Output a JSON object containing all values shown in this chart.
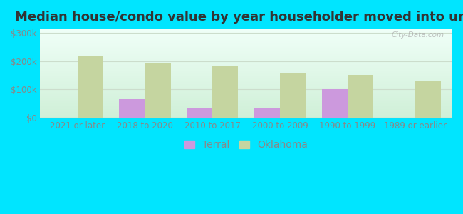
{
  "title": "Median house/condo value by year householder moved into unit",
  "categories": [
    "2021 or later",
    "2018 to 2020",
    "2010 to 2017",
    "2000 to 2009",
    "1990 to 1999",
    "1989 or earlier"
  ],
  "terral_values": [
    null,
    65000,
    35000,
    35000,
    100000,
    null
  ],
  "oklahoma_values": [
    220000,
    195000,
    182000,
    160000,
    152000,
    128000
  ],
  "terral_color": "#cc99dd",
  "oklahoma_color": "#c5d5a0",
  "outer_bg": "#00e5ff",
  "plot_bg_top": "#f0fff8",
  "plot_bg_bottom": "#d0f0d8",
  "ylabel_ticks": [
    "$0",
    "$100k",
    "$200k",
    "$300k"
  ],
  "ytick_values": [
    0,
    100000,
    200000,
    300000
  ],
  "ylim": [
    0,
    315000
  ],
  "watermark": "City-Data.com",
  "bar_width": 0.38,
  "title_fontsize": 13,
  "tick_fontsize": 8.5,
  "legend_fontsize": 10,
  "grid_color": "#ccddcc",
  "tick_color": "#888888"
}
